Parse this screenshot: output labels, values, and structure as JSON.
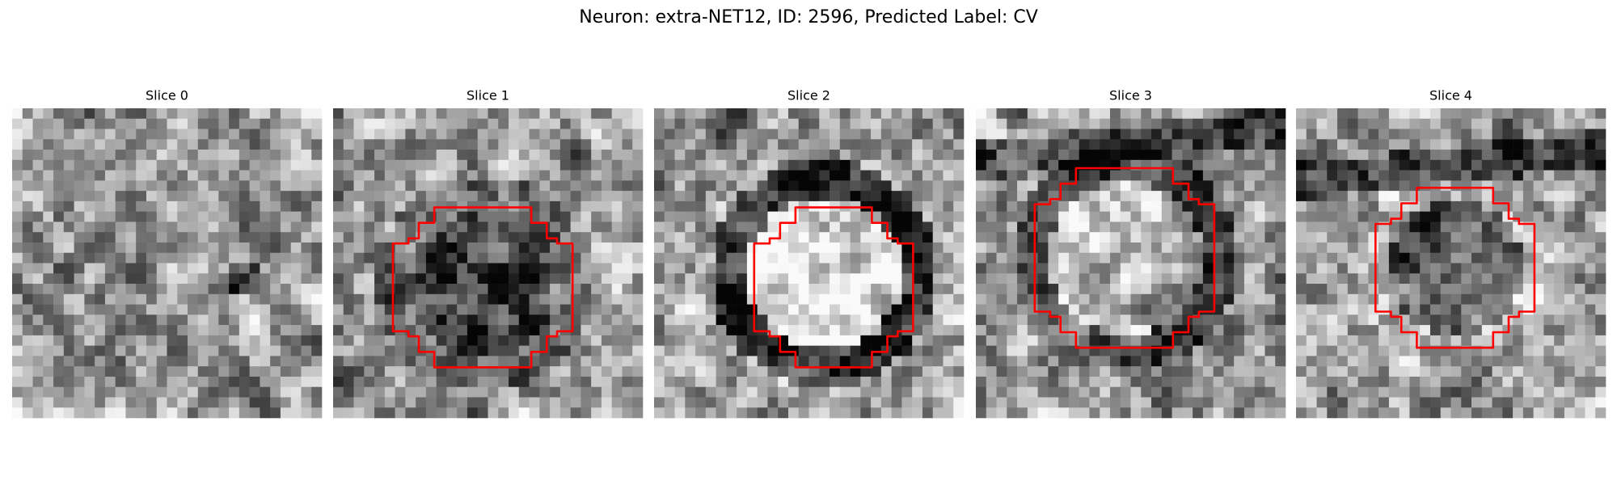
{
  "header": {
    "title": "Neuron: extra-NET12, ID: 2596, Predicted Label: CV"
  },
  "panels": [
    {
      "title": "Slice 0"
    },
    {
      "title": "Slice 1"
    },
    {
      "title": "Slice 2"
    },
    {
      "title": "Slice 3"
    },
    {
      "title": "Slice 4"
    }
  ]
}
